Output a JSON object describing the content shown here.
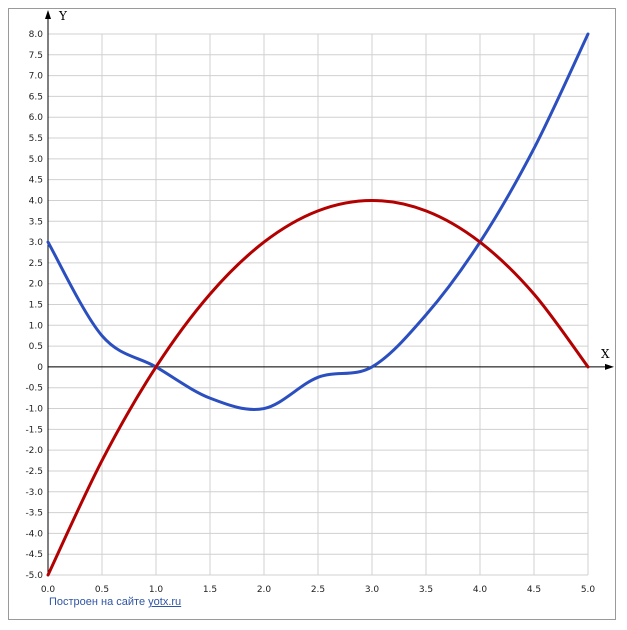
{
  "chart_data": {
    "type": "line",
    "title": "",
    "xlabel": "X",
    "ylabel": "Y",
    "xlim": [
      0,
      5
    ],
    "ylim": [
      -5,
      8
    ],
    "x_ticks": [
      "0.0",
      "0.5",
      "1.0",
      "1.5",
      "2.0",
      "2.5",
      "3.0",
      "3.5",
      "4.0",
      "4.5",
      "5.0"
    ],
    "y_ticks": [
      "8.0",
      "7.5",
      "7.0",
      "6.5",
      "6.0",
      "5.5",
      "5.0",
      "4.5",
      "4.0",
      "3.5",
      "3.0",
      "2.5",
      "2.0",
      "1.5",
      "1.0",
      "0.5",
      "0",
      "-0.5",
      "-1.0",
      "-1.5",
      "-2.0",
      "-2.5",
      "-3.0",
      "-3.5",
      "-4.0",
      "-4.5",
      "-5.0"
    ],
    "grid": true,
    "x": [
      0,
      0.5,
      1,
      1.5,
      2,
      2.5,
      3,
      3.5,
      4,
      4.5,
      5
    ],
    "series": [
      {
        "color": "#2b4fbf",
        "values": [
          3,
          0.75,
          0,
          -0.75,
          -1,
          -0.25,
          0,
          1.25,
          3,
          5.25,
          8
        ]
      },
      {
        "color": "#b30000",
        "values": [
          -5,
          -2.25,
          0,
          1.75,
          3,
          3.75,
          4,
          3.75,
          3,
          1.75,
          0
        ]
      }
    ]
  },
  "credit": {
    "prefix": "Построен на сайте ",
    "link": "yotx.ru"
  },
  "colors": {
    "grid": "#d0d0d0",
    "axis": "#000000"
  }
}
